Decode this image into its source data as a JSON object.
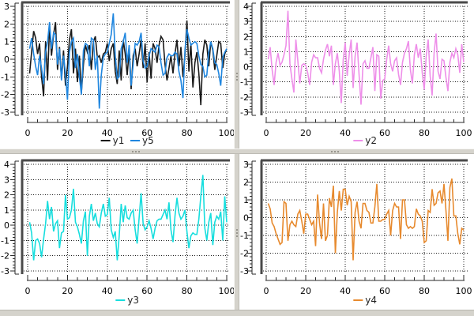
{
  "window": {
    "kind": "multi-panel plot view",
    "panel_count": 4
  },
  "colors": {
    "panel_bg": "#ffffff",
    "divider_bg": "#d5d3cc",
    "frame": "#4a4a4a",
    "grid": "#1a1a1a",
    "axis": "#2a2a2a",
    "tick_label": "#000000",
    "legend_text": "#222222",
    "series_y1": "#1a1a1a",
    "series_y5": "#1f86df",
    "series_y2": "#ee8fe9",
    "series_y3": "#17dede",
    "series_y4": "#e78a2e"
  },
  "chart_data": [
    {
      "type": "line",
      "position": "top-left",
      "title": "",
      "xlabel": "",
      "ylabel": "",
      "xlim": [
        0,
        100
      ],
      "ylim": [
        -3,
        3
      ],
      "xticks": [
        0,
        20,
        40,
        60,
        80,
        100
      ],
      "yticks": [
        3,
        2,
        1,
        0,
        -1,
        -2,
        -3
      ],
      "x_minor_step": 5,
      "y_minor_step": 0.2,
      "grid": "dotted",
      "legend_position": "bottom",
      "x_start": 1,
      "x_step": 1,
      "series": [
        {
          "name": "y1",
          "color": "#1a1a1a",
          "values": [
            -0.8,
            0.4,
            1.6,
            1.2,
            0.3,
            0.9,
            -1.0,
            -2.1,
            1.0,
            -1.2,
            1.9,
            0.2,
            1.4,
            2.1,
            -0.6,
            0.7,
            -1.1,
            0.5,
            -1.5,
            -0.4,
            1.1,
            1.7,
            -0.8,
            0.6,
            -1.3,
            0.2,
            -1.9,
            -0.3,
            0.8,
            0.4,
            0.8,
            -0.6,
            1.0,
            1.3,
            0.1,
            0.2,
            -0.2,
            0.3,
            0.4,
            0.9,
            -0.1,
            0.6,
            0.9,
            -0.7,
            -1.4,
            0.5,
            -1.2,
            1.1,
            0.3,
            -0.9,
            0.5,
            -1.7,
            0.2,
            0.6,
            -0.4,
            0.3,
            1.1,
            -0.5,
            0.9,
            -1.3,
            0.4,
            -1.1,
            0.9,
            0.6,
            -0.2,
            0.8,
            1.3,
            1.1,
            -0.3,
            -1.2,
            -0.5,
            0.2,
            -0.8,
            0.3,
            1.1,
            -0.4,
            0.7,
            -1.0,
            0.2,
            2.2,
            -0.7,
            0.9,
            -1.6,
            -0.2,
            0.4,
            -0.8,
            -2.6,
            0.3,
            1.1,
            0.8,
            -0.4,
            1.0,
            0.5,
            -0.6,
            0.2,
            1.0,
            0.9,
            -0.5,
            0.3,
            0.6
          ]
        },
        {
          "name": "y5",
          "color": "#1f86df",
          "values": [
            0.6,
            1.2,
            0.3,
            -0.4,
            -0.9,
            0.2,
            -0.5,
            -1.4,
            0.4,
            1.0,
            2.1,
            0.6,
            1.5,
            1.4,
            -0.3,
            0.6,
            -1.2,
            0.2,
            -0.8,
            -2.3,
            0.4,
            1.0,
            1.2,
            -0.5,
            0.3,
            -1.0,
            -2.0,
            0.5,
            0.9,
            0.8,
            -0.4,
            1.2,
            1.1,
            -0.6,
            0.2,
            -2.8,
            -0.9,
            0.1,
            0.3,
            0.4,
            0.9,
            1.4,
            2.6,
            0.2,
            -1.1,
            -1.0,
            0.6,
            1.0,
            1.5,
            -0.2,
            0.8,
            -1.5,
            -0.3,
            0.9,
            0.8,
            1.0,
            1.5,
            -0.1,
            -0.5,
            -0.4,
            0.2,
            0.6,
            0.5,
            0.4,
            0.8,
            0.7,
            -0.2,
            -0.9,
            -0.8,
            0.1,
            0.3,
            0.2,
            0.2,
            0.4,
            0.3,
            -0.7,
            -1.2,
            -2.2,
            0.5,
            1.7,
            1.2,
            0.8,
            0.9,
            1.0,
            0.9,
            0.2,
            -0.3,
            -0.4,
            -1.0,
            -0.9,
            0.4,
            1.0,
            0.6,
            -0.2,
            -0.3,
            -0.8,
            -1.5,
            0.1,
            0.4,
            0.6
          ]
        }
      ]
    },
    {
      "type": "line",
      "position": "top-right",
      "title": "",
      "xlabel": "",
      "ylabel": "",
      "xlim": [
        0,
        100
      ],
      "ylim": [
        -3,
        4
      ],
      "xticks": [
        0,
        20,
        40,
        60,
        80,
        100
      ],
      "yticks": [
        4,
        3,
        2,
        1,
        0,
        -1,
        -2,
        -3
      ],
      "x_minor_step": 5,
      "y_minor_step": 0.2,
      "grid": "dotted",
      "legend_position": "bottom",
      "x_start": 1,
      "x_step": 1,
      "series": [
        {
          "name": "y2",
          "color": "#ee8fe9",
          "values": [
            0.5,
            1.3,
            -0.2,
            -1.2,
            0.3,
            0.9,
            0.1,
            0.3,
            0.8,
            1.4,
            3.7,
            0.2,
            -0.8,
            -1.7,
            1.8,
            0.4,
            -1.1,
            0.1,
            0.2,
            0.1,
            -0.4,
            -1.2,
            0.3,
            0.8,
            0.6,
            0.6,
            -0.1,
            -0.4,
            0.5,
            1.1,
            1.5,
            0.7,
            1.4,
            -1.2,
            0.2,
            0.9,
            -0.3,
            -2.4,
            0.5,
            1.6,
            -0.6,
            0.8,
            1.8,
            -1.4,
            0.7,
            1.6,
            -0.5,
            -2.5,
            0.2,
            0.4,
            -0.1,
            -0.1,
            0.6,
            1.3,
            -1.6,
            0.8,
            0.7,
            -2.1,
            -0.9,
            -0.8,
            0.5,
            1.4,
            0.2,
            -0.3,
            0.4,
            0.6,
            -0.5,
            -1.2,
            0.3,
            0.9,
            1.2,
            1.7,
            -0.2,
            -1.1,
            0.8,
            1.5,
            0.6,
            1.2,
            -0.4,
            -1.5,
            0.7,
            1.8,
            -0.6,
            -1.9,
            0.9,
            2.2,
            -0.3,
            -0.8,
            0.5,
            0.4,
            -0.7,
            -1.6,
            0.3,
            0.9,
            0.6,
            1.2,
            0.8,
            -0.4,
            1.5,
            0.3
          ]
        }
      ]
    },
    {
      "type": "line",
      "position": "bottom-left",
      "title": "",
      "xlabel": "",
      "ylabel": "",
      "xlim": [
        0,
        100
      ],
      "ylim": [
        -3,
        4
      ],
      "xticks": [
        0,
        20,
        40,
        60,
        80,
        100
      ],
      "yticks": [
        4,
        3,
        2,
        1,
        0,
        -1,
        -2,
        -3
      ],
      "x_minor_step": 5,
      "y_minor_step": 0.2,
      "grid": "dotted",
      "legend_position": "bottom",
      "x_start": 1,
      "x_step": 1,
      "series": [
        {
          "name": "y3",
          "color": "#17dede",
          "values": [
            0.2,
            -0.5,
            -2.3,
            -1.0,
            -0.9,
            -1.2,
            -2.1,
            -0.9,
            0.1,
            1.6,
            0.4,
            1.2,
            -0.4,
            0.1,
            0.3,
            -1.5,
            -0.5,
            -0.4,
            2.0,
            0.4,
            0.5,
            1.0,
            2.4,
            0.2,
            -0.1,
            -0.6,
            -1.2,
            0.3,
            0.9,
            -2.0,
            0.6,
            1.4,
            0.3,
            0.8,
            0.1,
            -0.1,
            0.8,
            1.4,
            0.6,
            0.7,
            1.8,
            -0.3,
            -0.8,
            -0.4,
            -2.3,
            -0.7,
            1.4,
            0.2,
            1.3,
            0.5,
            0.4,
            0.8,
            1.0,
            -0.3,
            -1.2,
            0.5,
            2.1,
            0.1,
            -0.3,
            -0.1,
            0.3,
            -0.2,
            -0.9,
            -0.2,
            0.3,
            0.4,
            0.4,
            0.7,
            1.0,
            0.4,
            1.5,
            -0.3,
            -1.1,
            0.6,
            1.8,
            0.8,
            0.4,
            0.6,
            1.0,
            -0.4,
            -1.5,
            -0.7,
            -0.5,
            -0.6,
            -0.6,
            0.4,
            1.9,
            3.3,
            -0.2,
            -1.0,
            0.2,
            0.8,
            -1.3,
            0.2,
            0.6,
            0.4,
            0.9,
            -1.0,
            1.9,
            0.2
          ]
        }
      ]
    },
    {
      "type": "line",
      "position": "bottom-right",
      "title": "",
      "xlabel": "",
      "ylabel": "",
      "xlim": [
        0,
        100
      ],
      "ylim": [
        -3,
        3
      ],
      "xticks": [
        0,
        20,
        40,
        60,
        80,
        100
      ],
      "yticks": [
        3,
        2,
        1,
        0,
        -1,
        -2,
        -3
      ],
      "x_minor_step": 5,
      "y_minor_step": 0.2,
      "grid": "dotted",
      "legend_position": "bottom",
      "x_start": 1,
      "x_step": 1,
      "series": [
        {
          "name": "y4",
          "color": "#e78a2e",
          "values": [
            0.8,
            0.5,
            -0.3,
            -0.5,
            -0.9,
            -1.2,
            -1.5,
            -1.4,
            0.9,
            0.8,
            -1.3,
            -0.4,
            -0.2,
            -0.4,
            -0.5,
            0.2,
            0.4,
            -0.2,
            -0.9,
            0.2,
            0.2,
            -0.1,
            -0.4,
            -0.2,
            -1.6,
            1.3,
            -0.3,
            -1.2,
            0.8,
            -1.3,
            -1.0,
            1.1,
            0.6,
            1.8,
            -2.0,
            0.3,
            1.5,
            0.4,
            1.6,
            1.6,
            0.7,
            1.2,
            0.9,
            -2.4,
            0.3,
            0.9,
            -0.2,
            -0.6,
            0.8,
            0.8,
            0.4,
            0.3,
            -0.3,
            -0.3,
            0.6,
            1.9,
            -0.2,
            -0.2,
            -0.1,
            -0.1,
            0.2,
            0.4,
            -1.0,
            0.4,
            0.8,
            0.6,
            0.6,
            -1.2,
            1.0,
            1.0,
            -0.4,
            -0.6,
            -0.5,
            -0.6,
            -0.5,
            0.5,
            0.2,
            0.1,
            -0.2,
            -1.4,
            -1.3,
            0.4,
            0.3,
            1.6,
            0.7,
            0.8,
            1.4,
            1.5,
            0.8,
            1.9,
            0.4,
            -1.3,
            1.7,
            2.2,
            0.1,
            0.1,
            -0.9,
            -1.5,
            -0.6,
            -0.7
          ]
        }
      ]
    }
  ]
}
